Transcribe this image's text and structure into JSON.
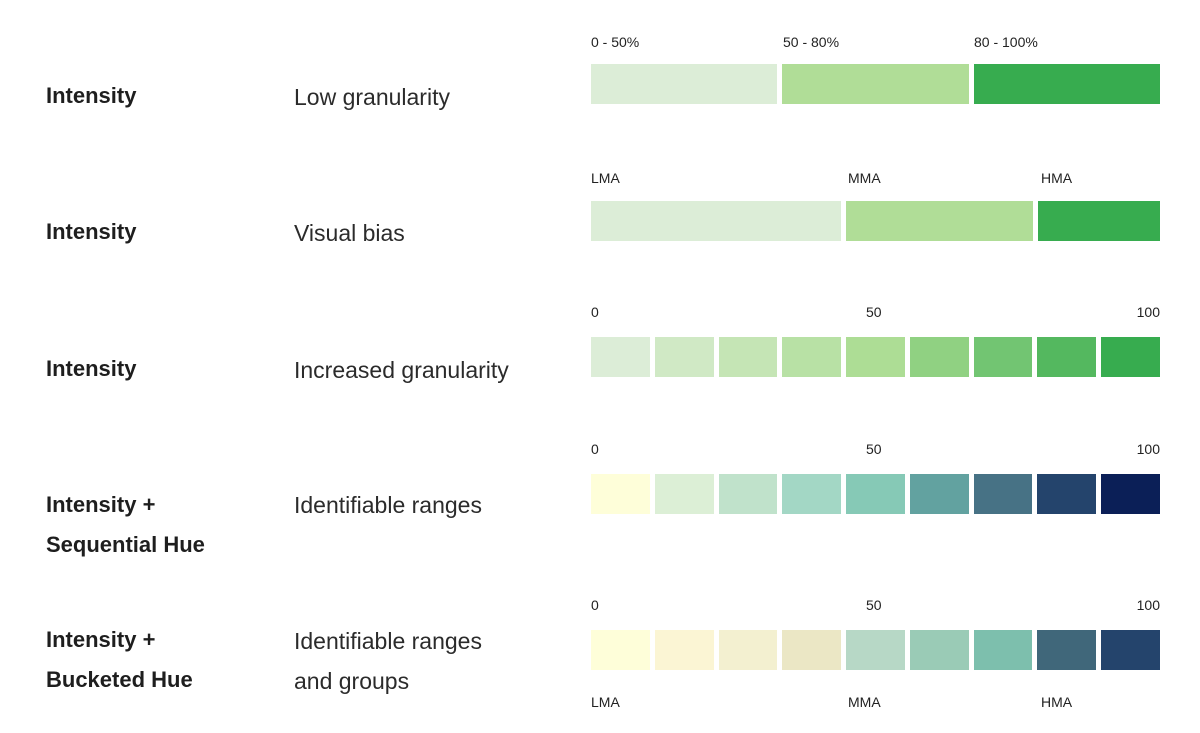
{
  "rows": [
    {
      "category": [
        "Intensity"
      ],
      "description": [
        "Low granularity"
      ],
      "top_labels": [
        "0 - 50%",
        "50 - 80%",
        "80 - 100%"
      ],
      "segments": [
        {
          "color": "#dcedd7",
          "weight": 1
        },
        {
          "color": "#b0dd97",
          "weight": 1
        },
        {
          "color": "#37ac4f",
          "weight": 1
        }
      ]
    },
    {
      "category": [
        "Intensity"
      ],
      "description": [
        "Visual bias"
      ],
      "top_labels": [
        "LMA",
        "MMA",
        "HMA"
      ],
      "segments": [
        {
          "color": "#dcedd7",
          "weight": 250
        },
        {
          "color": "#b0dd97",
          "weight": 187
        },
        {
          "color": "#37ac4f",
          "weight": 122
        }
      ]
    },
    {
      "category": [
        "Intensity"
      ],
      "description": [
        "Increased granularity"
      ],
      "top_labels": [
        "0",
        "50",
        "100"
      ],
      "segments": [
        {
          "color": "#dcedd7",
          "weight": 1
        },
        {
          "color": "#d0e9c5",
          "weight": 1
        },
        {
          "color": "#c5e5b5",
          "weight": 1
        },
        {
          "color": "#b8e1a5",
          "weight": 1
        },
        {
          "color": "#addd95",
          "weight": 1
        },
        {
          "color": "#90d182",
          "weight": 1
        },
        {
          "color": "#72c572",
          "weight": 1
        },
        {
          "color": "#54b85f",
          "weight": 1
        },
        {
          "color": "#37ac4f",
          "weight": 1
        }
      ]
    },
    {
      "category": [
        "Intensity +",
        "Sequential Hue"
      ],
      "description": [
        "Identifiable ranges"
      ],
      "top_labels": [
        "0",
        "50",
        "100"
      ],
      "segments": [
        {
          "color": "#fefed9",
          "weight": 1
        },
        {
          "color": "#dcefd6",
          "weight": 1
        },
        {
          "color": "#c0e2cb",
          "weight": 1
        },
        {
          "color": "#a3d7c5",
          "weight": 1
        },
        {
          "color": "#86c9b6",
          "weight": 1
        },
        {
          "color": "#62a2a0",
          "weight": 1
        },
        {
          "color": "#477285",
          "weight": 1
        },
        {
          "color": "#24446c",
          "weight": 1
        },
        {
          "color": "#0b1f57",
          "weight": 1
        }
      ]
    },
    {
      "category": [
        "Intensity +",
        "Bucketed Hue"
      ],
      "description": [
        "Identifiable ranges",
        "and groups"
      ],
      "top_labels": [
        "0",
        "50",
        "100"
      ],
      "bottom_labels": [
        "LMA",
        "MMA",
        "HMA"
      ],
      "segments": [
        {
          "color": "#fefed9",
          "weight": 1
        },
        {
          "color": "#fbf5d4",
          "weight": 1
        },
        {
          "color": "#f3f0d0",
          "weight": 1
        },
        {
          "color": "#ebe7c5",
          "weight": 1
        },
        {
          "color": "#b7d8c6",
          "weight": 1
        },
        {
          "color": "#9acbb6",
          "weight": 1
        },
        {
          "color": "#7dbfad",
          "weight": 1
        },
        {
          "color": "#40677a",
          "weight": 1
        },
        {
          "color": "#24446c",
          "weight": 1
        }
      ]
    }
  ]
}
